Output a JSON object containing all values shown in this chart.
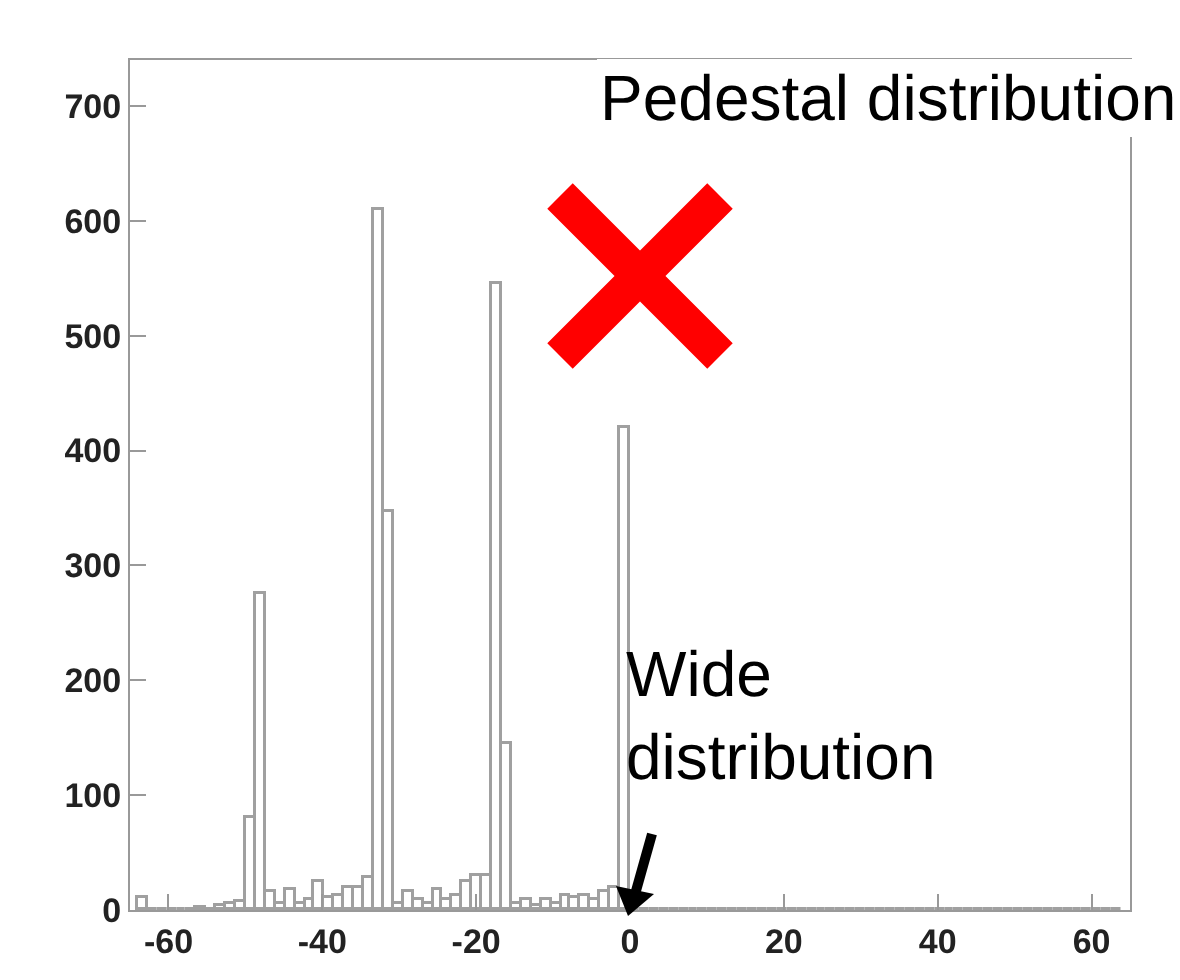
{
  "chart_data": {
    "type": "histogram",
    "bins": [
      -64,
      -62.72,
      -61.44,
      -60.16,
      -58.88,
      -57.6,
      -56.32,
      -55.04,
      -53.76,
      -52.48,
      -51.2,
      -49.92,
      -48.64,
      -47.36,
      -46.08,
      -44.8,
      -43.52,
      -42.24,
      -40.96,
      -39.68,
      -38.4,
      -37.12,
      -35.84,
      -34.56,
      -33.28,
      -32,
      -30.72,
      -29.44,
      -28.16,
      -26.88,
      -25.6,
      -24.32,
      -23.04,
      -21.76,
      -20.48,
      -19.2,
      -17.92,
      -16.64,
      -15.36,
      -14.08,
      -12.8,
      -11.52,
      -10.24,
      -8.96,
      -7.68,
      -6.4,
      -5.12,
      -3.84,
      -2.56,
      -1.28,
      0,
      1.28,
      2.56,
      3.84,
      5.12,
      6.4,
      7.68,
      8.96,
      10.24,
      11.52,
      12.8,
      14.08,
      15.36,
      16.64,
      17.92,
      19.2,
      20.48,
      21.76,
      23.04,
      24.32,
      25.6,
      26.88,
      28.16,
      29.44,
      30.72,
      32,
      33.28,
      34.56,
      35.84,
      37.12,
      38.4,
      39.68,
      40.96,
      42.24,
      43.52,
      44.8,
      46.08,
      47.36,
      48.64,
      49.92,
      51.2,
      52.48,
      53.76,
      55.04,
      56.32,
      57.6,
      58.88,
      60.16,
      61.44,
      62.72,
      64
    ],
    "values": [
      10,
      0,
      0,
      0,
      0,
      0,
      2,
      0,
      3,
      5,
      7,
      80,
      275,
      15,
      5,
      18,
      5,
      8,
      25,
      10,
      12,
      20,
      20,
      28,
      610,
      347,
      5,
      15,
      8,
      5,
      18,
      8,
      12,
      25,
      30,
      30,
      545,
      145,
      5,
      8,
      3,
      8,
      5,
      12,
      10,
      12,
      8,
      15,
      20,
      420,
      0,
      0,
      0,
      0,
      0,
      0,
      0,
      0,
      0,
      0,
      0,
      0,
      0,
      0,
      0,
      0,
      0,
      0,
      0,
      0,
      0,
      0,
      0,
      0,
      0,
      0,
      0,
      0,
      0,
      0,
      0,
      0,
      0,
      0,
      0,
      0,
      0,
      0,
      0,
      0,
      0,
      0,
      0,
      0,
      0,
      0,
      0,
      0,
      0,
      0
    ],
    "color": "#a0a0a0",
    "xlim": [
      -65,
      65
    ],
    "xticks": [
      -60,
      -40,
      -20,
      0,
      20,
      40,
      60
    ],
    "ylim": [
      0,
      740
    ],
    "yticks": [
      0,
      100,
      200,
      300,
      400,
      500,
      600,
      700
    ],
    "grid": false,
    "annotations": [
      "Pedestal distribution",
      {
        "text": "Wide distribution",
        "x": -1,
        "y": 10
      }
    ]
  }
}
